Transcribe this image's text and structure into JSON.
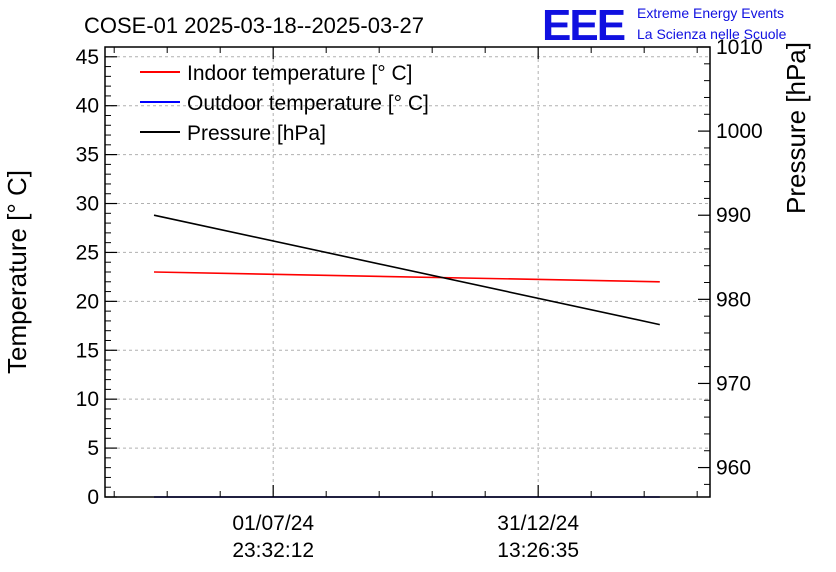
{
  "chart_data": {
    "type": "line",
    "title": "COSE-01 2025-03-18--2025-03-27",
    "ylabel": "Temperature [° C]",
    "y2label": "Pressure [hPa]",
    "ylim": [
      0,
      46
    ],
    "y2lim": [
      956.5,
      1010
    ],
    "yticks": [
      0,
      5,
      10,
      15,
      20,
      25,
      30,
      35,
      40,
      45
    ],
    "y2ticks": [
      960,
      970,
      980,
      990,
      1000,
      1010
    ],
    "xlim": [
      0,
      1
    ],
    "xticks": [
      {
        "x": 0.278,
        "date": "01/07/24",
        "time": "23:32:12"
      },
      {
        "x": 0.716,
        "date": "31/12/24",
        "time": "13:26:35"
      }
    ],
    "grid": true,
    "legend_position": "top-left",
    "series": [
      {
        "name": "Indoor temperature [° C]",
        "axis": "left",
        "color": "#ff0000",
        "x": [
          0.081,
          0.917
        ],
        "y": [
          23.0,
          22.0
        ]
      },
      {
        "name": "Outdoor temperature [° C]",
        "axis": "left",
        "color": "#0000ff",
        "x": [
          0.081,
          0.917
        ],
        "y": [
          0.0,
          0.0
        ]
      },
      {
        "name": "Pressure [hPa]",
        "axis": "right",
        "color": "#000000",
        "x": [
          0.081,
          0.917
        ],
        "y": [
          990.0,
          977.0
        ]
      }
    ]
  },
  "logo": {
    "mark": "EEE",
    "line1": "Extreme Energy Events",
    "line2": "La Scienza nelle Scuole"
  }
}
